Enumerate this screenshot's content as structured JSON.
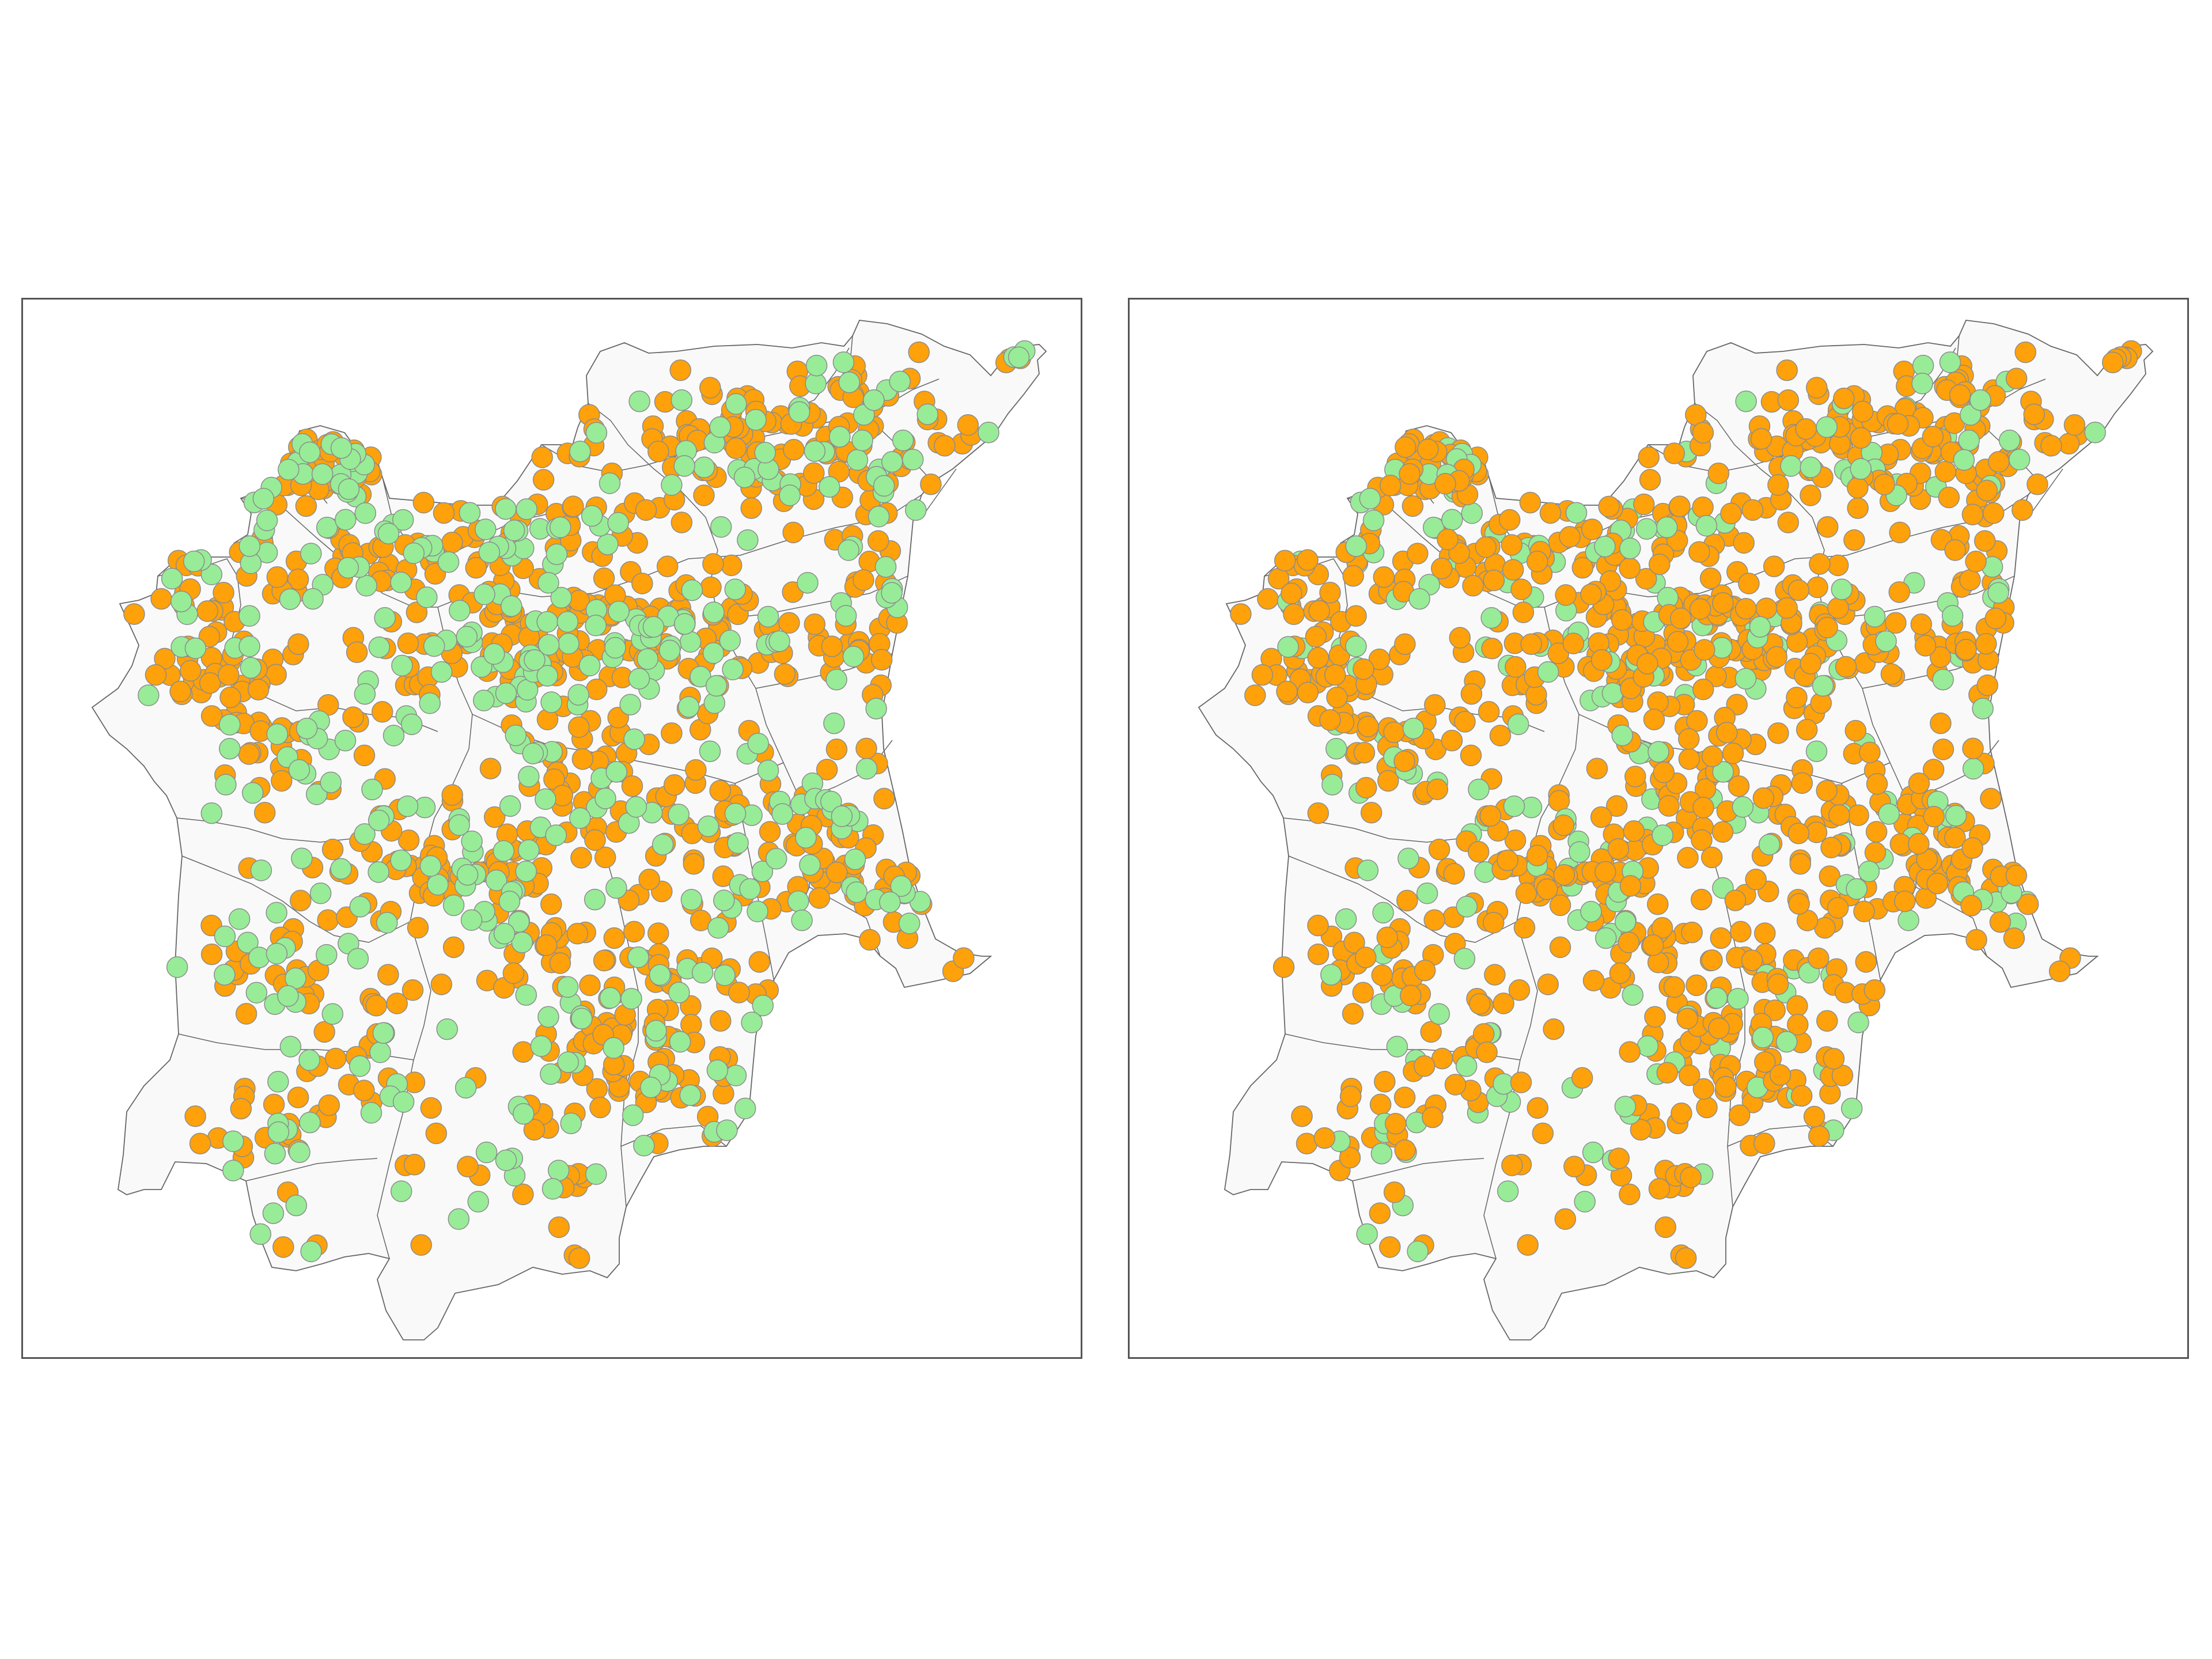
{
  "colors": {
    "region_fill": "#f9f9f9",
    "boundary_stroke": "#666666",
    "marker_stroke": "#8c8c8c",
    "category_a": "#98ec98",
    "category_b": "#ffa10a"
  },
  "panels": [
    {
      "id": "left",
      "category_b_share": 0.66
    },
    {
      "id": "right",
      "category_b_share": 0.8
    }
  ]
}
